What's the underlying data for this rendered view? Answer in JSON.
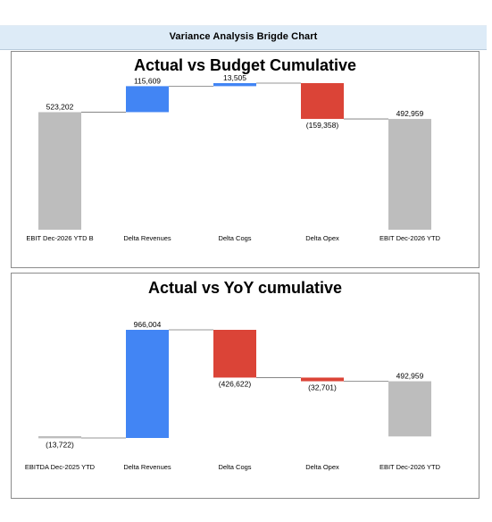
{
  "header": {
    "title": "Variance Analysis Brigde Chart"
  },
  "colors": {
    "increase": "#4285f4",
    "decrease": "#db4437",
    "total": "#bdbdbd",
    "connector": "#757575",
    "header_bg": "#ddebf7"
  },
  "chart_data": [
    {
      "type": "waterfall",
      "title": "Actual vs Budget Cumulative",
      "categories": [
        "EBIT Dec-2026 YTD B",
        "Delta Revenues",
        "Delta Cogs",
        "Delta Opex",
        "EBIT Dec-2026 YTD"
      ],
      "values": [
        523202,
        115609,
        13505,
        -159358,
        492959
      ],
      "kinds": [
        "total",
        "delta",
        "delta",
        "delta",
        "total"
      ],
      "labels": [
        "523,202",
        "115,609",
        "13,505",
        "(159,358)",
        "492,959"
      ],
      "grid": false,
      "legend": "none"
    },
    {
      "type": "waterfall",
      "title": "Actual vs YoY cumulative",
      "categories": [
        "EBITDA Dec-2025 YTD",
        "Delta Revenues",
        "Delta Cogs",
        "Delta Opex",
        "EBIT Dec-2026 YTD"
      ],
      "values": [
        -13722,
        966004,
        -426622,
        -32701,
        492959
      ],
      "kinds": [
        "total",
        "delta",
        "delta",
        "delta",
        "total"
      ],
      "labels": [
        "(13,722)",
        "966,004",
        "(426,622)",
        "(32,701)",
        "492,959"
      ],
      "grid": false,
      "legend": "none"
    }
  ]
}
